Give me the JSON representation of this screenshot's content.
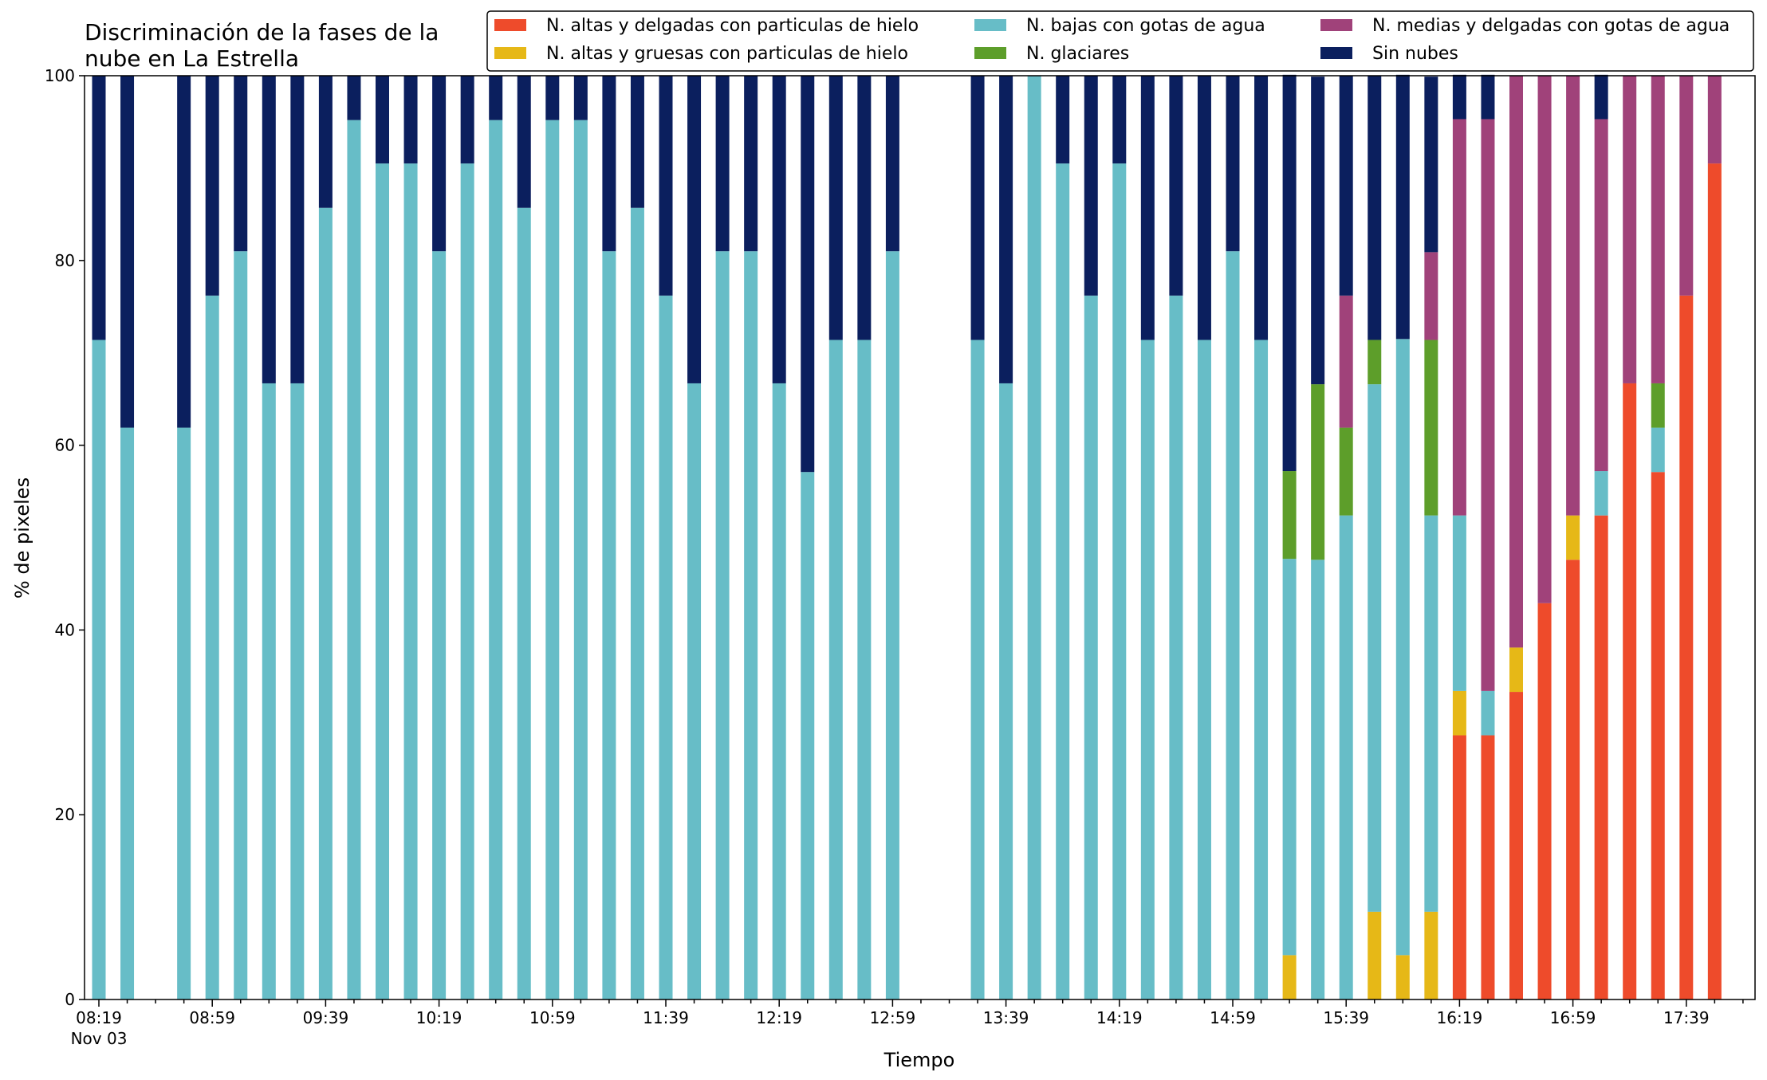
{
  "chart_data": {
    "type": "bar",
    "stacked": true,
    "title_lines": [
      "Discriminación de la fases de la",
      "nube en La Estrella"
    ],
    "xlabel": "Tiempo",
    "ylabel": "% de pixeles",
    "ylim": [
      0,
      100
    ],
    "yticks": [
      "0",
      "20",
      "40",
      "60",
      "80",
      "100"
    ],
    "xtick_labels": [
      "08:19",
      "08:59",
      "09:39",
      "10:19",
      "10:59",
      "11:39",
      "12:19",
      "12:59",
      "13:39",
      "14:19",
      "14:59",
      "15:39",
      "16:19",
      "16:59",
      "17:39"
    ],
    "xtick_sublabel": "Nov 03",
    "grid": false,
    "legend_position": "top-right",
    "x": [
      "08:19",
      "08:29",
      "08:39",
      "08:49",
      "08:59",
      "09:09",
      "09:19",
      "09:29",
      "09:39",
      "09:49",
      "09:59",
      "10:09",
      "10:19",
      "10:29",
      "10:39",
      "10:49",
      "10:59",
      "11:09",
      "11:19",
      "11:29",
      "11:39",
      "11:49",
      "11:59",
      "12:09",
      "12:19",
      "12:29",
      "12:39",
      "12:49",
      "12:59",
      "13:09",
      "13:19",
      "13:29",
      "13:39",
      "13:49",
      "13:59",
      "14:09",
      "14:19",
      "14:29",
      "14:39",
      "14:49",
      "14:59",
      "15:09",
      "15:19",
      "15:29",
      "15:39",
      "15:49",
      "15:59",
      "16:09",
      "16:19",
      "16:29",
      "16:39",
      "16:49",
      "16:59",
      "17:09",
      "17:19",
      "17:29",
      "17:39",
      "17:49"
    ],
    "series": [
      {
        "name": "N. altas y delgadas con particulas de hielo",
        "color": "#ee4b2b",
        "values": [
          0,
          0,
          null,
          0,
          0,
          0,
          0,
          0,
          0,
          0,
          0,
          0,
          0,
          0,
          0,
          0,
          0,
          0,
          0,
          0,
          0,
          0,
          0,
          0,
          0,
          0,
          0,
          0,
          0,
          null,
          null,
          0,
          0,
          0,
          0,
          0,
          0,
          0,
          0,
          0,
          0,
          0,
          0,
          0,
          0,
          0,
          0,
          0,
          28.6,
          28.6,
          33.3,
          42.9,
          47.6,
          52.4,
          66.7,
          57.1,
          76.2,
          90.5
        ]
      },
      {
        "name": "N. altas y gruesas con particulas de hielo",
        "color": "#e6b817",
        "values": [
          0,
          0,
          null,
          0,
          0,
          0,
          0,
          0,
          0,
          0,
          0,
          0,
          0,
          0,
          0,
          0,
          0,
          0,
          0,
          0,
          0,
          0,
          0,
          0,
          0,
          0,
          0,
          0,
          0,
          null,
          null,
          0,
          0,
          0,
          0,
          0,
          0,
          0,
          0,
          0,
          0,
          0,
          4.8,
          0,
          0,
          9.5,
          4.8,
          9.5,
          4.8,
          0,
          4.8,
          0,
          4.8,
          0,
          0,
          0,
          0,
          0
        ]
      },
      {
        "name": "N. bajas con gotas de agua",
        "color": "#67bdc7",
        "values": [
          71.4,
          61.9,
          null,
          61.9,
          76.2,
          81.0,
          66.7,
          66.7,
          85.7,
          95.2,
          90.5,
          90.5,
          81.0,
          90.5,
          95.2,
          85.7,
          95.2,
          95.2,
          81.0,
          85.7,
          76.2,
          66.7,
          81.0,
          81.0,
          66.7,
          57.1,
          71.4,
          71.4,
          81.0,
          null,
          null,
          71.4,
          66.7,
          100,
          90.5,
          76.2,
          90.5,
          71.4,
          76.2,
          71.4,
          81.0,
          71.4,
          42.9,
          47.6,
          52.4,
          57.1,
          66.7,
          42.9,
          19.0,
          4.8,
          0,
          0,
          0,
          4.8,
          0,
          4.8,
          0,
          0
        ]
      },
      {
        "name": "N. glaciares",
        "color": "#5d9e2a",
        "values": [
          0,
          0,
          null,
          0,
          0,
          0,
          0,
          0,
          0,
          0,
          0,
          0,
          0,
          0,
          0,
          0,
          0,
          0,
          0,
          0,
          0,
          0,
          0,
          0,
          0,
          0,
          0,
          0,
          0,
          null,
          null,
          0,
          0,
          0,
          0,
          0,
          0,
          0,
          0,
          0,
          0,
          0,
          9.5,
          19.0,
          9.5,
          4.8,
          0,
          19.0,
          0,
          0,
          0,
          0,
          0,
          0,
          0,
          4.8,
          0,
          0
        ]
      },
      {
        "name": "N. medias y delgadas con gotas de agua",
        "color": "#a0427a",
        "values": [
          0,
          0,
          null,
          0,
          0,
          0,
          0,
          0,
          0,
          0,
          0,
          0,
          0,
          0,
          0,
          0,
          0,
          0,
          0,
          0,
          0,
          0,
          0,
          0,
          0,
          0,
          0,
          0,
          0,
          null,
          null,
          0,
          0,
          0,
          0,
          0,
          0,
          0,
          0,
          0,
          0,
          0,
          0,
          0,
          14.3,
          0,
          0,
          9.5,
          42.9,
          61.9,
          61.9,
          57.1,
          47.6,
          38.1,
          33.3,
          33.3,
          23.8,
          9.5
        ]
      },
      {
        "name": "Sin nubes",
        "color": "#0b1f5e",
        "values": [
          28.6,
          38.1,
          null,
          38.1,
          23.8,
          19.0,
          33.3,
          33.3,
          14.3,
          4.8,
          9.5,
          9.5,
          19.0,
          9.5,
          4.8,
          14.3,
          4.8,
          4.8,
          19.0,
          14.3,
          23.8,
          33.3,
          19.0,
          19.0,
          33.3,
          42.9,
          28.6,
          28.6,
          19.0,
          null,
          null,
          28.6,
          33.3,
          0,
          9.5,
          23.8,
          9.5,
          28.6,
          23.8,
          28.6,
          19.0,
          28.6,
          42.9,
          33.3,
          23.8,
          28.6,
          28.6,
          19.0,
          4.8,
          4.8,
          0,
          0,
          0,
          4.8,
          0,
          0,
          0,
          0
        ]
      }
    ]
  }
}
